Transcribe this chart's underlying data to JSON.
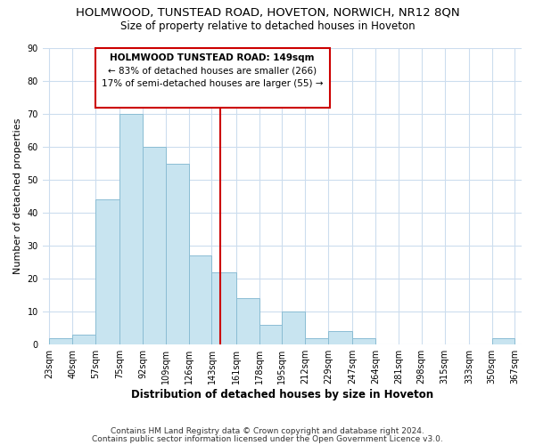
{
  "title": "HOLMWOOD, TUNSTEAD ROAD, HOVETON, NORWICH, NR12 8QN",
  "subtitle": "Size of property relative to detached houses in Hoveton",
  "xlabel": "Distribution of detached houses by size in Hoveton",
  "ylabel": "Number of detached properties",
  "bar_edges": [
    23,
    40,
    57,
    75,
    92,
    109,
    126,
    143,
    161,
    178,
    195,
    212,
    229,
    247,
    264,
    281,
    298,
    315,
    333,
    350,
    367
  ],
  "bar_heights": [
    2,
    3,
    44,
    70,
    60,
    55,
    27,
    22,
    14,
    6,
    10,
    2,
    4,
    2,
    0,
    0,
    0,
    0,
    0,
    2
  ],
  "bar_color": "#c8e4f0",
  "bar_edgecolor": "#8bbdd4",
  "vline_x": 149,
  "vline_color": "#cc0000",
  "ylim": [
    0,
    90
  ],
  "yticks": [
    0,
    10,
    20,
    30,
    40,
    50,
    60,
    70,
    80,
    90
  ],
  "annotation_title": "HOLMWOOD TUNSTEAD ROAD: 149sqm",
  "annotation_line1": "← 83% of detached houses are smaller (266)",
  "annotation_line2": "17% of semi-detached houses are larger (55) →",
  "annotation_box_color": "#ffffff",
  "annotation_box_edgecolor": "#cc0000",
  "footer1": "Contains HM Land Registry data © Crown copyright and database right 2024.",
  "footer2": "Contains public sector information licensed under the Open Government Licence v3.0.",
  "title_fontsize": 9.5,
  "subtitle_fontsize": 8.5,
  "xlabel_fontsize": 8.5,
  "ylabel_fontsize": 8,
  "tick_fontsize": 7,
  "annotation_fontsize": 7.5,
  "footer_fontsize": 6.5,
  "grid_color": "#ccddee",
  "background_color": "#ffffff"
}
